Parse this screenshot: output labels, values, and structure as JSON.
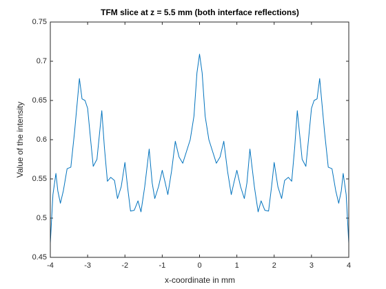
{
  "chart_data": {
    "type": "line",
    "title": "TFM slice at z = 5.5 mm (both interface reflections)",
    "xlabel": "x-coordinate in mm",
    "ylabel": "Value of the intensity",
    "x": [
      -4,
      -3.93,
      -3.85,
      -3.8,
      -3.73,
      -3.65,
      -3.55,
      -3.45,
      -3.35,
      -3.22,
      -3.15,
      -3.07,
      -3.0,
      -2.92,
      -2.85,
      -2.75,
      -2.62,
      -2.55,
      -2.47,
      -2.38,
      -2.28,
      -2.2,
      -2.1,
      -2.0,
      -1.93,
      -1.85,
      -1.75,
      -1.65,
      -1.57,
      -1.47,
      -1.35,
      -1.27,
      -1.2,
      -1.1,
      -1.0,
      -0.92,
      -0.85,
      -0.75,
      -0.65,
      -0.55,
      -0.45,
      -0.35,
      -0.25,
      -0.15,
      -0.07,
      0,
      0.07,
      0.15,
      0.25,
      0.35,
      0.45,
      0.55,
      0.65,
      0.75,
      0.85,
      0.92,
      1.0,
      1.1,
      1.2,
      1.27,
      1.35,
      1.47,
      1.57,
      1.65,
      1.75,
      1.85,
      1.93,
      2.0,
      2.1,
      2.2,
      2.28,
      2.38,
      2.47,
      2.55,
      2.62,
      2.75,
      2.85,
      2.92,
      3.0,
      3.07,
      3.15,
      3.22,
      3.35,
      3.45,
      3.55,
      3.65,
      3.73,
      3.8,
      3.85,
      3.93,
      4
    ],
    "series": [
      {
        "color": "#0072bd",
        "values": [
          0.468,
          0.53,
          0.557,
          0.535,
          0.519,
          0.535,
          0.563,
          0.565,
          0.61,
          0.678,
          0.652,
          0.65,
          0.64,
          0.6,
          0.566,
          0.575,
          0.637,
          0.59,
          0.547,
          0.552,
          0.548,
          0.525,
          0.54,
          0.571,
          0.54,
          0.509,
          0.51,
          0.522,
          0.508,
          0.54,
          0.588,
          0.545,
          0.525,
          0.54,
          0.561,
          0.545,
          0.53,
          0.56,
          0.598,
          0.578,
          0.57,
          0.585,
          0.6,
          0.63,
          0.685,
          0.709,
          0.685,
          0.63,
          0.6,
          0.585,
          0.57,
          0.578,
          0.598,
          0.56,
          0.53,
          0.545,
          0.561,
          0.54,
          0.525,
          0.545,
          0.588,
          0.54,
          0.508,
          0.522,
          0.51,
          0.509,
          0.54,
          0.571,
          0.54,
          0.525,
          0.548,
          0.552,
          0.547,
          0.59,
          0.637,
          0.575,
          0.566,
          0.6,
          0.64,
          0.65,
          0.652,
          0.678,
          0.61,
          0.565,
          0.563,
          0.535,
          0.519,
          0.535,
          0.557,
          0.53,
          0.468
        ]
      }
    ],
    "xlim": [
      -4,
      4
    ],
    "xticks": [
      -4,
      -3,
      -2,
      -1,
      0,
      1,
      2,
      3,
      4
    ],
    "ylim": [
      0.45,
      0.75
    ],
    "yticks": [
      0.45,
      0.5,
      0.55,
      0.6,
      0.65,
      0.7,
      0.75
    ]
  }
}
